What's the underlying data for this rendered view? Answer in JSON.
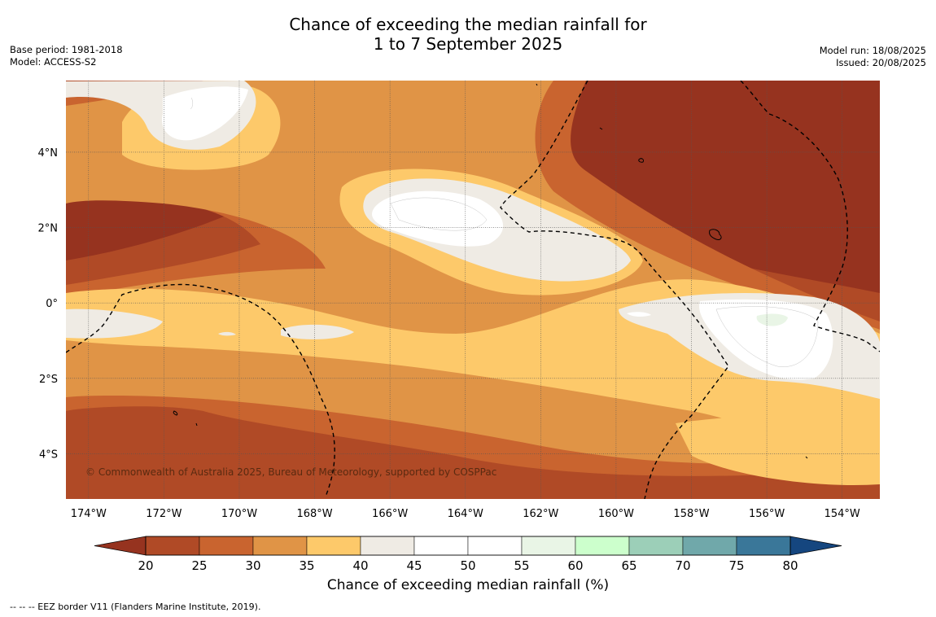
{
  "title": {
    "line1": "Chance of exceeding the median rainfall for",
    "line2": "1 to 7 September 2025"
  },
  "meta_left": {
    "base_period": "Base period: 1981-2018",
    "model": "Model: ACCESS-S2"
  },
  "meta_right": {
    "model_run": "Model run: 18/08/2025",
    "issued": "Issued: 20/08/2025"
  },
  "map": {
    "copyright": "© Commonwealth of Australia 2025, Bureau of Meteorology, supported by COSPPac",
    "lon_range": [
      -174.6,
      -153.0
    ],
    "lat_range": [
      -5.2,
      5.9
    ],
    "lon_ticks": [
      {
        "value": -174,
        "label": "174°W"
      },
      {
        "value": -172,
        "label": "172°W"
      },
      {
        "value": -170,
        "label": "170°W"
      },
      {
        "value": -168,
        "label": "168°W"
      },
      {
        "value": -166,
        "label": "166°W"
      },
      {
        "value": -164,
        "label": "164°W"
      },
      {
        "value": -162,
        "label": "162°W"
      },
      {
        "value": -160,
        "label": "160°W"
      },
      {
        "value": -158,
        "label": "158°W"
      },
      {
        "value": -156,
        "label": "156°W"
      },
      {
        "value": -154,
        "label": "154°W"
      }
    ],
    "lat_ticks": [
      {
        "value": 4,
        "label": "4°N"
      },
      {
        "value": 2,
        "label": "2°N"
      },
      {
        "value": 0,
        "label": "0°"
      },
      {
        "value": -2,
        "label": "2°S"
      },
      {
        "value": -4,
        "label": "4°S"
      }
    ]
  },
  "colorbar": {
    "title": "Chance of exceeding median rainfall (%)",
    "ticks": [
      "20",
      "25",
      "30",
      "35",
      "40",
      "45",
      "50",
      "55",
      "60",
      "65",
      "70",
      "75",
      "80"
    ],
    "colors": [
      "#b04a26",
      "#c9642f",
      "#e09446",
      "#fdc96a",
      "#efebe4",
      "#ffffff",
      "#ffffff",
      "#e9f5e6",
      "#ccffcc",
      "#9ccfb8",
      "#70a8aa",
      "#3a7799"
    ],
    "under_color": "#96331f",
    "over_color": "#15467f"
  },
  "footnote": "--  --  -- EEZ border V11 (Flanders Marine Institute, 2019)."
}
